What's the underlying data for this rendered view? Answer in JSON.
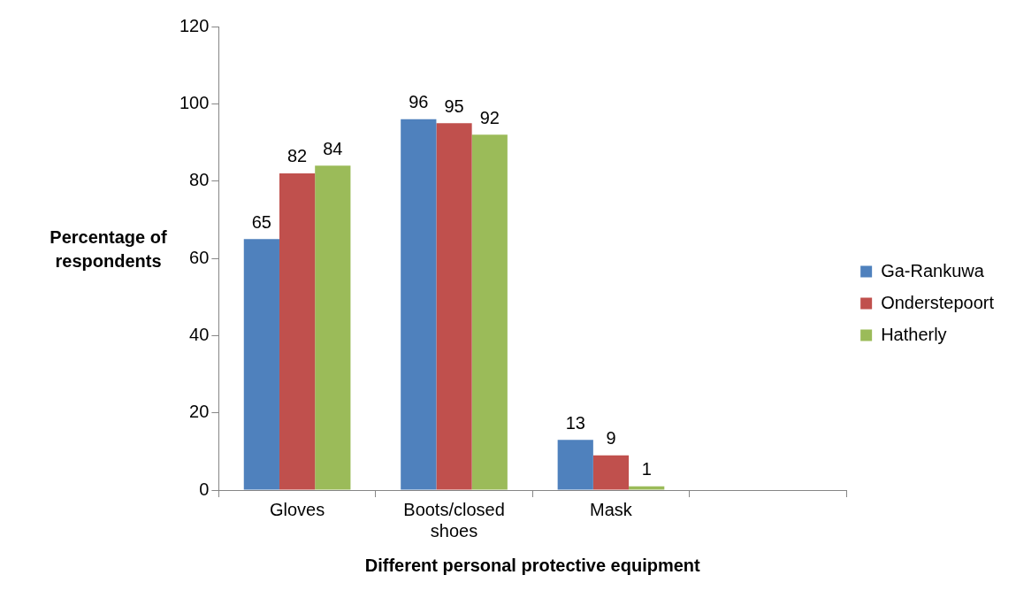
{
  "chart_data": {
    "type": "bar",
    "xlabel": "Different personal protective equipment",
    "ylabel": "Percentage of respondents",
    "categories": [
      "Gloves",
      "Boots/closed shoes",
      "Mask",
      null
    ],
    "series": [
      {
        "name": "Ga-Rankuwa",
        "color": "#4f81bd",
        "values": [
          65,
          96,
          13,
          null
        ]
      },
      {
        "name": "Onderstepoort",
        "color": "#c0504d",
        "values": [
          82,
          95,
          9,
          null
        ]
      },
      {
        "name": "Hatherly",
        "color": "#9bbb59",
        "values": [
          84,
          92,
          1,
          null
        ]
      }
    ],
    "ylim": [
      0,
      120
    ],
    "yticks": [
      0,
      20,
      40,
      60,
      80,
      100,
      120
    ],
    "grid": false,
    "legend": "right",
    "data_labels": true
  }
}
